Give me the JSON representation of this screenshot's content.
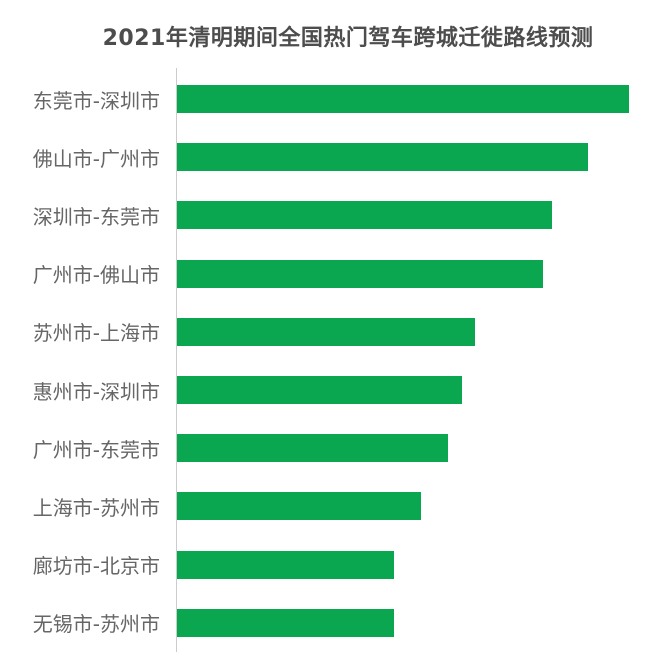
{
  "title": "2021年清明期间全国热门驾车跨城迁徙路线预测",
  "colors": {
    "bar": "#0aa650",
    "axis_line": "#cccccc",
    "category_label": "#666666",
    "title": "#4d4d4d",
    "background": "#ffffff"
  },
  "chart_data": {
    "type": "bar",
    "orientation": "horizontal",
    "title": "2021年清明期间全国热门驾车跨城迁徙路线预测",
    "categories": [
      "东莞市-深圳市",
      "佛山市-广州市",
      "深圳市-东莞市",
      "广州市-佛山市",
      "苏州市-上海市",
      "惠州市-深圳市",
      "广州市-东莞市",
      "上海市-苏州市",
      "廊坊市-北京市",
      "无锡市-苏州市"
    ],
    "values": [
      100,
      91,
      83,
      81,
      66,
      63,
      60,
      54,
      48,
      48
    ],
    "values_are_estimated_relative_index_max_100": true,
    "xlabel": "",
    "ylabel": "",
    "xlim": [
      0,
      104
    ],
    "grid": false,
    "legend": false,
    "value_labels_shown": false,
    "bar_color": "#0aa650"
  }
}
